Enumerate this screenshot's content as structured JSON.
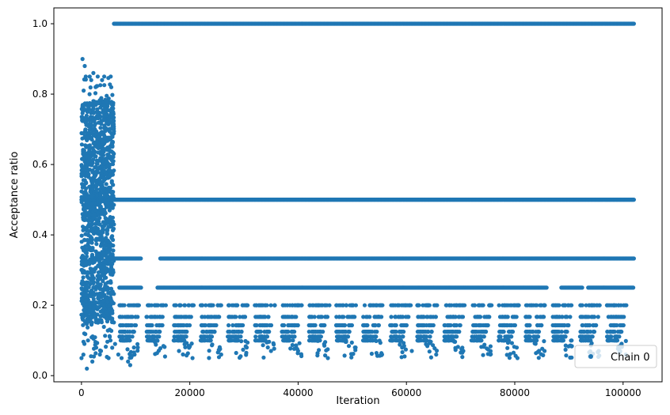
{
  "chart_data": {
    "type": "scatter",
    "xlabel": "Iteration",
    "ylabel": "Acceptance ratio",
    "xlim": [
      -5100,
      107200
    ],
    "ylim": [
      -0.0175,
      1.045
    ],
    "xticks": [
      0,
      20000,
      40000,
      60000,
      80000,
      100000
    ],
    "xtick_labels": [
      "0",
      "20000",
      "40000",
      "60000",
      "80000",
      "100000"
    ],
    "yticks": [
      0.0,
      0.2,
      0.4,
      0.6,
      0.8,
      1.0
    ],
    "ytick_labels": [
      "0.0",
      "0.2",
      "0.4",
      "0.6",
      "0.8",
      "1.0"
    ],
    "grid": false,
    "legend_position": "lower-right",
    "series": [
      {
        "name": "Chain 0",
        "color": "#1f77b4",
        "marker": "circle",
        "description_phases": {
          "burn_in": {
            "x_range": [
              0,
              6000
            ],
            "y_range": [
              0.02,
              0.9
            ]
          },
          "ratio_1_0": {
            "x_range": [
              6000,
              102000
            ],
            "y": 1.0
          },
          "ratio_0_5": {
            "x_range": [
              0,
              102000
            ],
            "y": 0.5
          },
          "ratio_0_333": {
            "x_range": [
              6000,
              102000
            ],
            "y": 0.333
          },
          "ratio_0_25": {
            "x_range": [
              7000,
              102000
            ],
            "y": 0.25
          }
        },
        "points": [
          [
            0,
            0.05
          ],
          [
            200,
            0.9
          ],
          [
            400,
            0.81
          ],
          [
            600,
            0.88
          ],
          [
            800,
            0.85
          ],
          [
            1000,
            0.02
          ],
          [
            1200,
            0.1
          ],
          [
            1500,
            0.8
          ],
          [
            1800,
            0.84
          ],
          [
            2000,
            0.04
          ],
          [
            2200,
            0.86
          ],
          [
            2600,
            0.82
          ],
          [
            3000,
            0.85
          ],
          [
            3400,
            0.06
          ],
          [
            3800,
            0.84
          ],
          [
            4200,
            0.85
          ],
          [
            4600,
            0.78
          ],
          [
            5000,
            0.05
          ],
          [
            5400,
            0.85
          ],
          [
            5800,
            0.75
          ],
          [
            6200,
            0.09
          ],
          [
            6800,
            0.06
          ],
          [
            7400,
            0.05
          ],
          [
            8000,
            0.1
          ],
          [
            8600,
            0.04
          ],
          [
            9000,
            0.03
          ],
          [
            9800,
            0.06
          ],
          [
            10400,
            0.08
          ],
          [
            18000,
            0.07
          ],
          [
            20500,
            0.05
          ],
          [
            25800,
            0.06
          ],
          [
            30500,
            0.08
          ],
          [
            35000,
            0.07
          ],
          [
            40000,
            0.07
          ],
          [
            45500,
            0.05
          ],
          [
            50500,
            0.08
          ],
          [
            55500,
            0.06
          ],
          [
            61000,
            0.07
          ],
          [
            65500,
            0.06
          ],
          [
            70500,
            0.07
          ],
          [
            75500,
            0.06
          ],
          [
            80500,
            0.05
          ],
          [
            85500,
            0.07
          ],
          [
            90500,
            0.1
          ],
          [
            95500,
            0.07
          ],
          [
            100500,
            0.06
          ]
        ]
      }
    ]
  }
}
